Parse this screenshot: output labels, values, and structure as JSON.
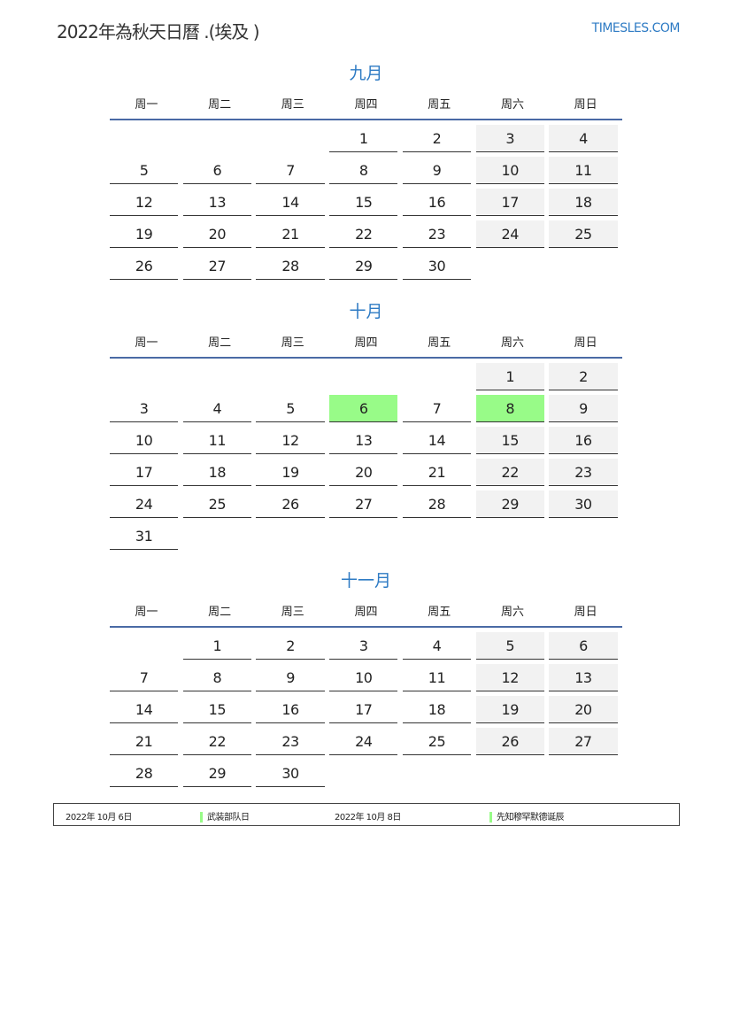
{
  "header": {
    "title": "2022年為秋天日曆 .(埃及 )",
    "logo": "TIMESLES.COM"
  },
  "weekdays": [
    "周一",
    "周二",
    "周三",
    "周四",
    "周五",
    "周六",
    "周日"
  ],
  "colors": {
    "accent": "#2e7bc4",
    "weekend": "#f2f2f2",
    "holiday": "#98fb88",
    "header_line": "#4a6aa5"
  },
  "months": [
    {
      "name": "九月",
      "start_offset": 3,
      "days": 30,
      "holidays": []
    },
    {
      "name": "十月",
      "start_offset": 5,
      "days": 31,
      "holidays": [
        6,
        8
      ]
    },
    {
      "name": "十一月",
      "start_offset": 1,
      "days": 30,
      "holidays": []
    }
  ],
  "legend": [
    {
      "date": "2022年 10月 6日",
      "name": "武装部队日"
    },
    {
      "date": "2022年 10月 8日",
      "name": "先知穆罕默德诞辰"
    }
  ]
}
